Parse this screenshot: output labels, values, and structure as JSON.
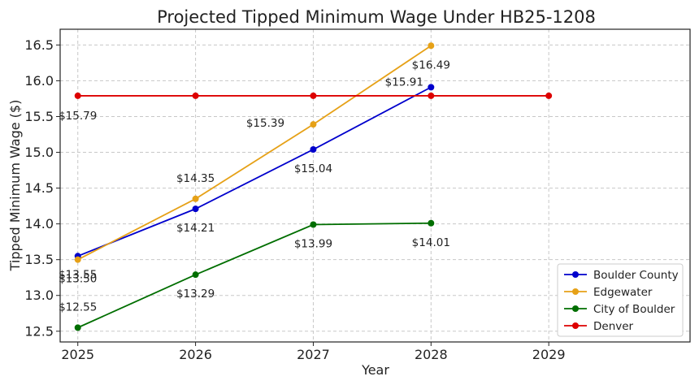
{
  "chart_data": {
    "type": "line",
    "title": "Projected Tipped Minimum Wage Under HB25-1208",
    "xlabel": "Year",
    "ylabel": "Tipped Minimum Wage ($)",
    "xlim": [
      2024.85,
      2030.2
    ],
    "ylim": [
      12.35,
      16.72
    ],
    "x_ticks": [
      2025,
      2026,
      2027,
      2028,
      2029
    ],
    "y_ticks": [
      12.5,
      13.0,
      13.5,
      14.0,
      14.5,
      15.0,
      15.5,
      16.0,
      16.5
    ],
    "y_tick_labels": [
      "12.5",
      "13.0",
      "13.5",
      "14.0",
      "14.5",
      "15.0",
      "15.5",
      "16.0",
      "16.5"
    ],
    "grid": true,
    "legend_position": "bottom-right",
    "series": [
      {
        "name": "Boulder County",
        "color": "#0000cc",
        "x": [
          2025,
          2026,
          2027,
          2028
        ],
        "values": [
          13.55,
          14.21,
          15.04,
          15.91
        ],
        "labels": [
          "$13.55",
          "$14.21",
          "$15.04",
          "$15.91"
        ]
      },
      {
        "name": "Edgewater",
        "color": "#e6a117",
        "x": [
          2025,
          2026,
          2027,
          2028
        ],
        "values": [
          13.5,
          14.35,
          15.39,
          16.49
        ],
        "labels": [
          "$13.50",
          "$14.35",
          "$15.39",
          "$16.49"
        ]
      },
      {
        "name": "City of Boulder",
        "color": "#006e00",
        "x": [
          2025,
          2026,
          2027,
          2028
        ],
        "values": [
          12.55,
          13.29,
          13.99,
          14.01
        ],
        "labels": [
          "$12.55",
          "$13.29",
          "$13.99",
          "$14.01"
        ]
      },
      {
        "name": "Denver",
        "color": "#dd0000",
        "x": [
          2025,
          2026,
          2027,
          2028,
          2029
        ],
        "values": [
          15.79,
          15.79,
          15.79,
          15.79,
          15.79
        ],
        "labels": [
          "$15.79"
        ]
      }
    ]
  }
}
